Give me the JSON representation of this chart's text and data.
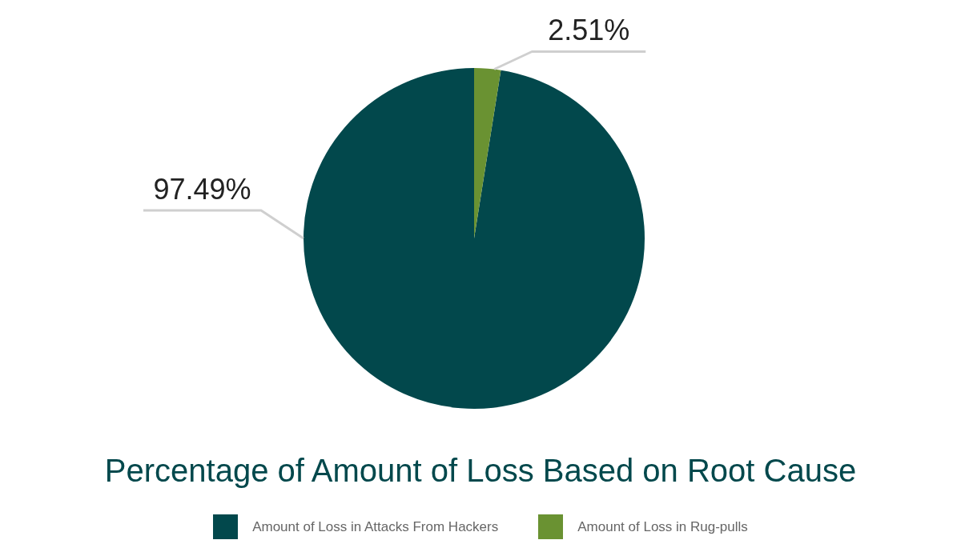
{
  "chart_data": {
    "type": "pie",
    "title": "Percentage of Amount of Loss Based on Root Cause",
    "categories": [
      "Amount of Loss in Attacks From Hackers",
      "Amount of Loss in Rug-pulls"
    ],
    "values": [
      97.49,
      2.51
    ],
    "colors": [
      "#02484c",
      "#6a9232"
    ],
    "value_labels": [
      "97.49%",
      "2.51%"
    ],
    "legend": "bottom"
  }
}
